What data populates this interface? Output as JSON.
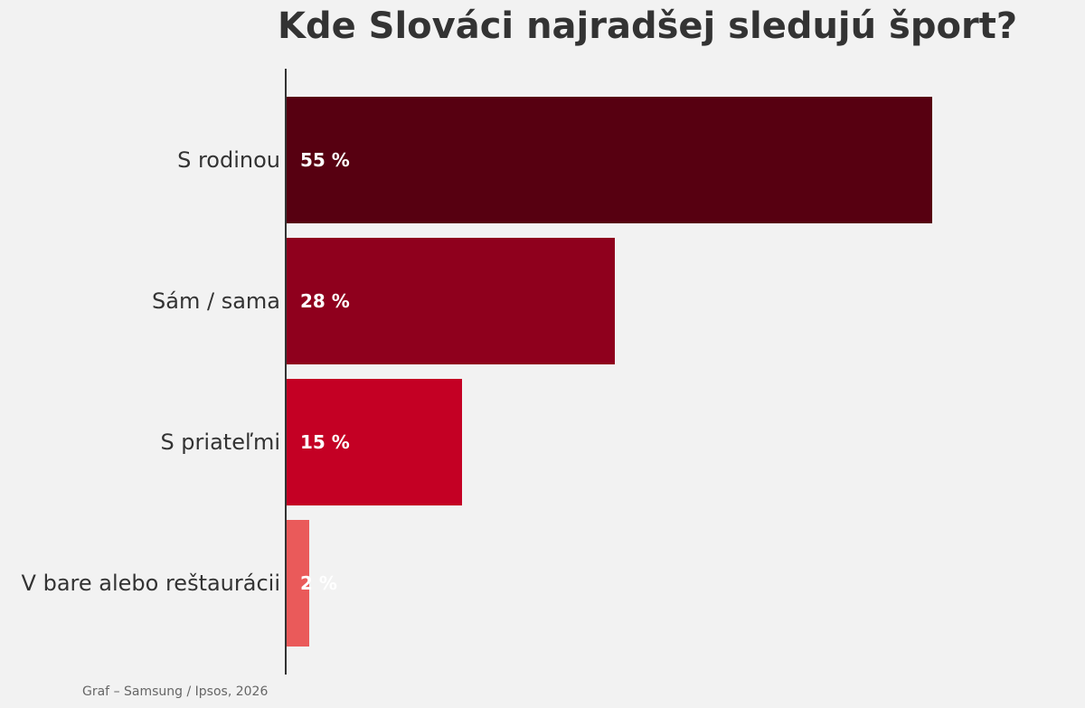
{
  "chart_data": {
    "type": "bar",
    "orientation": "horizontal",
    "title": "Kde Slováci najradšej sledujú šport?",
    "categories": [
      "S rodinou",
      "Sám / sama",
      "S priateľmi",
      "V bare alebo reštaurácii"
    ],
    "values": [
      55,
      28,
      15,
      2
    ],
    "value_labels": [
      "55 %",
      "28 %",
      "15 %",
      "2 %"
    ],
    "colors": [
      "#570011",
      "#8f001d",
      "#c40024",
      "#ea5a5a"
    ],
    "xlim": [
      0,
      60
    ],
    "grid": false,
    "legend": "none"
  },
  "source": "Graf – Samsung / Ipsos, 2026"
}
